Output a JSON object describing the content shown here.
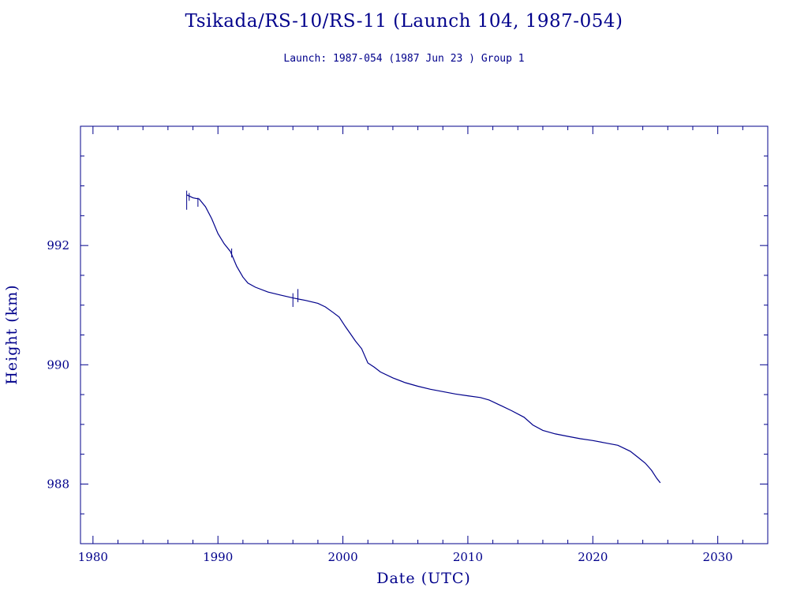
{
  "chart_data": {
    "type": "line",
    "title": "Tsikada/RS-10/RS-11 (Launch 104, 1987-054)",
    "subtitle": "Launch: 1987-054  (1987 Jun 23 )  Group 1",
    "xlabel": "Date (UTC)",
    "ylabel": "Height (km)",
    "xlim": [
      1979,
      2034
    ],
    "ylim": [
      987,
      994
    ],
    "x_ticks": [
      "1980",
      "1990",
      "2000",
      "2010",
      "2020",
      "2030"
    ],
    "y_ticks": [
      "988",
      "990",
      "992"
    ],
    "grid": false,
    "color": "#00008b",
    "series": [
      {
        "x": [
          1987.5,
          1988.0,
          1988.5,
          1989.0,
          1989.5,
          1990.0,
          1990.5,
          1991.0,
          1991.5,
          1992.0,
          1992.4,
          1993.0,
          1994.0,
          1995.0,
          1996.0,
          1997.0,
          1998.0,
          1998.6,
          1999.2,
          1999.7,
          2000.2,
          2000.6,
          2001.0,
          2001.5,
          2002.0,
          2002.5,
          2003.0,
          2004.0,
          2005.0,
          2006.0,
          2007.0,
          2008.0,
          2009.0,
          2010.0,
          2011.0,
          2011.7,
          2012.5,
          2013.5,
          2014.5,
          2015.2,
          2016.0,
          2017.0,
          2018.0,
          2019.0,
          2020.0,
          2021.0,
          2022.0,
          2023.0,
          2023.6,
          2024.2,
          2024.7,
          2025.1,
          2025.4
        ],
        "y": [
          992.85,
          992.8,
          992.78,
          992.65,
          992.45,
          992.2,
          992.03,
          991.9,
          991.65,
          991.47,
          991.37,
          991.3,
          991.22,
          991.17,
          991.12,
          991.08,
          991.03,
          990.97,
          990.88,
          990.8,
          990.64,
          990.52,
          990.4,
          990.27,
          990.03,
          989.96,
          989.88,
          989.78,
          989.7,
          989.64,
          989.59,
          989.55,
          989.51,
          989.48,
          989.45,
          989.41,
          989.33,
          989.23,
          989.12,
          988.99,
          988.9,
          988.84,
          988.8,
          988.76,
          988.73,
          988.69,
          988.65,
          988.55,
          988.45,
          988.35,
          988.23,
          988.1,
          988.02
        ]
      }
    ],
    "error_bars": [
      {
        "x": 1987.5,
        "low": 992.6,
        "high": 992.92
      },
      {
        "x": 1987.7,
        "low": 992.75,
        "high": 992.88
      },
      {
        "x": 1988.4,
        "low": 992.65,
        "high": 992.8
      },
      {
        "x": 1991.1,
        "low": 991.8,
        "high": 991.95
      },
      {
        "x": 1996.0,
        "low": 990.97,
        "high": 991.2
      },
      {
        "x": 1996.4,
        "low": 991.05,
        "high": 991.27
      }
    ]
  }
}
